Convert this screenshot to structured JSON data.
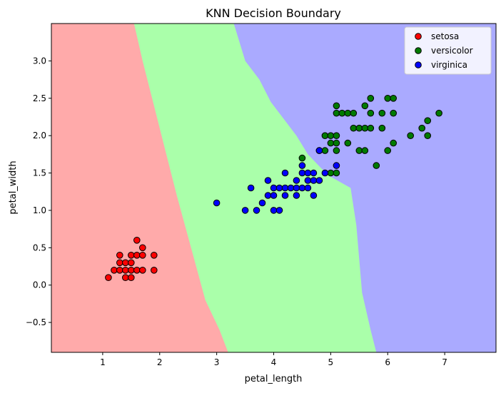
{
  "chart_data": {
    "type": "scatter",
    "title": "KNN Decision Boundary",
    "xlabel": "petal_length",
    "ylabel": "petal_width",
    "xlim": [
      0.1,
      7.9
    ],
    "ylim": [
      -0.9,
      3.5
    ],
    "xticks": [
      1,
      2,
      3,
      4,
      5,
      6,
      7
    ],
    "xtick_labels": [
      "1",
      "2",
      "3",
      "4",
      "5",
      "6",
      "7"
    ],
    "yticks": [
      -0.5,
      0.0,
      0.5,
      1.0,
      1.5,
      2.0,
      2.5,
      3.0
    ],
    "ytick_labels": [
      "−0.5",
      "0.0",
      "0.5",
      "1.0",
      "1.5",
      "2.0",
      "2.5",
      "3.0"
    ],
    "grid": false,
    "legend_position": "top-right",
    "regions": {
      "colors": {
        "setosa": "#ffaaaa",
        "versicolor": "#aaffaa",
        "virginica": "#aaaaff"
      },
      "boundary_setosa": [
        [
          1.55,
          3.5
        ],
        [
          1.7,
          3.0
        ],
        [
          1.9,
          2.4
        ],
        [
          2.1,
          1.8
        ],
        [
          2.3,
          1.2
        ],
        [
          2.55,
          0.5
        ],
        [
          2.8,
          -0.2
        ],
        [
          3.05,
          -0.6
        ],
        [
          3.2,
          -0.9
        ]
      ],
      "boundary_upper": [
        [
          3.3,
          3.5
        ],
        [
          3.5,
          3.0
        ],
        [
          3.75,
          2.75
        ],
        [
          3.95,
          2.45
        ],
        [
          4.2,
          2.2
        ],
        [
          4.4,
          2.0
        ],
        [
          4.6,
          1.75
        ],
        [
          4.85,
          1.55
        ],
        [
          5.0,
          1.45
        ],
        [
          5.35,
          1.3
        ],
        [
          5.45,
          0.8
        ],
        [
          5.55,
          -0.1
        ],
        [
          5.7,
          -0.6
        ],
        [
          5.8,
          -0.9
        ]
      ]
    },
    "series": [
      {
        "name": "setosa",
        "color": "#ff0000",
        "points": [
          [
            1.1,
            0.1
          ],
          [
            1.2,
            0.2
          ],
          [
            1.3,
            0.2
          ],
          [
            1.3,
            0.3
          ],
          [
            1.3,
            0.4
          ],
          [
            1.4,
            0.1
          ],
          [
            1.4,
            0.2
          ],
          [
            1.4,
            0.3
          ],
          [
            1.5,
            0.1
          ],
          [
            1.5,
            0.2
          ],
          [
            1.5,
            0.3
          ],
          [
            1.5,
            0.4
          ],
          [
            1.6,
            0.2
          ],
          [
            1.6,
            0.4
          ],
          [
            1.6,
            0.6
          ],
          [
            1.7,
            0.2
          ],
          [
            1.7,
            0.4
          ],
          [
            1.7,
            0.5
          ],
          [
            1.9,
            0.2
          ],
          [
            1.9,
            0.4
          ]
        ]
      },
      {
        "name": "versicolor",
        "color": "#007a00",
        "points": [
          [
            4.5,
            1.7
          ],
          [
            4.8,
            1.8
          ],
          [
            4.9,
            1.8
          ],
          [
            4.9,
            2.0
          ],
          [
            5.0,
            1.5
          ],
          [
            5.0,
            2.0
          ],
          [
            5.0,
            1.9
          ],
          [
            5.1,
            1.5
          ],
          [
            5.1,
            1.8
          ],
          [
            5.1,
            1.9
          ],
          [
            5.1,
            2.0
          ],
          [
            5.1,
            2.3
          ],
          [
            5.1,
            2.4
          ],
          [
            5.2,
            2.3
          ],
          [
            5.3,
            1.9
          ],
          [
            5.3,
            2.3
          ],
          [
            5.4,
            2.1
          ],
          [
            5.4,
            2.3
          ],
          [
            5.5,
            1.8
          ],
          [
            5.5,
            2.1
          ],
          [
            5.6,
            1.8
          ],
          [
            5.6,
            2.1
          ],
          [
            5.6,
            2.4
          ],
          [
            5.7,
            2.1
          ],
          [
            5.7,
            2.3
          ],
          [
            5.7,
            2.5
          ],
          [
            5.8,
            1.6
          ],
          [
            5.9,
            2.1
          ],
          [
            5.9,
            2.3
          ],
          [
            6.0,
            1.8
          ],
          [
            6.0,
            2.5
          ],
          [
            6.1,
            1.9
          ],
          [
            6.1,
            2.3
          ],
          [
            6.1,
            2.5
          ],
          [
            6.4,
            2.0
          ],
          [
            6.6,
            2.1
          ],
          [
            6.7,
            2.0
          ],
          [
            6.7,
            2.2
          ],
          [
            6.9,
            2.3
          ]
        ]
      },
      {
        "name": "virginica",
        "color": "#0000ff",
        "points": [
          [
            3.0,
            1.1
          ],
          [
            3.5,
            1.0
          ],
          [
            3.6,
            1.3
          ],
          [
            3.7,
            1.0
          ],
          [
            3.8,
            1.1
          ],
          [
            3.9,
            1.2
          ],
          [
            3.9,
            1.4
          ],
          [
            4.0,
            1.0
          ],
          [
            4.0,
            1.2
          ],
          [
            4.0,
            1.3
          ],
          [
            4.1,
            1.0
          ],
          [
            4.1,
            1.3
          ],
          [
            4.2,
            1.2
          ],
          [
            4.2,
            1.3
          ],
          [
            4.2,
            1.5
          ],
          [
            4.3,
            1.3
          ],
          [
            4.4,
            1.2
          ],
          [
            4.4,
            1.3
          ],
          [
            4.4,
            1.4
          ],
          [
            4.5,
            1.3
          ],
          [
            4.5,
            1.5
          ],
          [
            4.5,
            1.6
          ],
          [
            4.6,
            1.3
          ],
          [
            4.6,
            1.4
          ],
          [
            4.6,
            1.5
          ],
          [
            4.7,
            1.2
          ],
          [
            4.7,
            1.4
          ],
          [
            4.7,
            1.5
          ],
          [
            4.8,
            1.4
          ],
          [
            4.8,
            1.8
          ],
          [
            4.9,
            1.5
          ],
          [
            5.1,
            1.6
          ]
        ]
      }
    ]
  }
}
